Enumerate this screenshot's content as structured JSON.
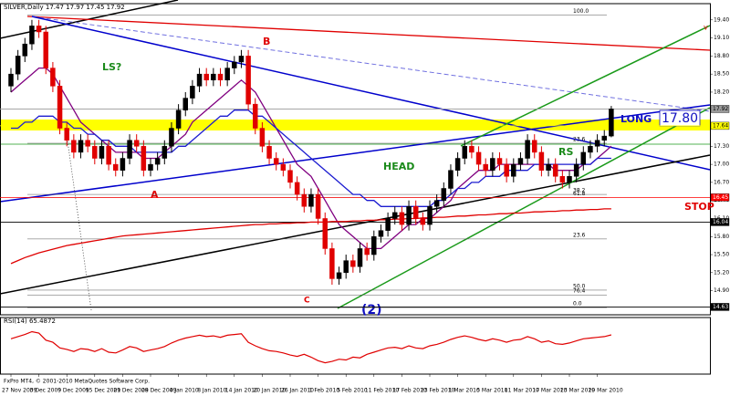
{
  "chart_data": {
    "type": "candlestick",
    "title": "SILVER,Daily  17.47 17.97 17.45 17.92",
    "footer": "FxPro MT4, © 2001-2010 MetaQuotes Software Corp.",
    "categories": [
      "27 Nov 2009",
      null,
      null,
      null,
      "3 Dec 2009",
      null,
      null,
      null,
      "9 Dec 2009",
      null,
      null,
      null,
      "15 Dec 2009",
      null,
      null,
      null,
      "21 Dec 2009",
      null,
      null,
      null,
      "28 Dec 2009",
      null,
      null,
      null,
      "4 Jan 2010",
      null,
      null,
      null,
      "8 Jan 2010",
      null,
      null,
      null,
      "14 Jan 2010",
      null,
      null,
      null,
      "20 Jan 2010",
      null,
      null,
      null,
      "26 Jan 2010",
      null,
      null,
      null,
      "1 Feb 2010",
      null,
      null,
      null,
      "5 Feb 2010",
      null,
      null,
      null,
      "11 Feb 2010",
      null,
      null,
      null,
      "17 Feb 2010",
      null,
      null,
      null,
      "23 Feb 2010",
      null,
      null,
      null,
      "1 Mar 2010",
      null,
      null,
      null,
      "5 Mar 2010",
      null,
      null,
      null,
      "11 Mar 2010",
      null,
      null,
      null,
      "17 Mar 2010",
      null,
      null,
      null,
      "23 Mar 2010",
      null,
      null,
      null,
      "29 Mar 2010",
      null,
      null
    ],
    "open": [
      18.3,
      18.5,
      18.8,
      19.0,
      19.3,
      19.2,
      18.6,
      18.3,
      17.6,
      17.4,
      17.2,
      17.4,
      17.3,
      17.1,
      17.3,
      17.0,
      16.9,
      17.1,
      17.4,
      17.3,
      16.9,
      17.0,
      17.1,
      17.3,
      17.6,
      17.9,
      18.1,
      18.3,
      18.5,
      18.4,
      18.5,
      18.4,
      18.6,
      18.7,
      18.8,
      18.0,
      17.6,
      17.3,
      17.1,
      17.0,
      16.9,
      16.7,
      16.5,
      16.3,
      16.5,
      16.1,
      15.6,
      15.1,
      15.2,
      15.4,
      15.3,
      15.6,
      15.5,
      15.8,
      15.9,
      16.1,
      16.2,
      16.0,
      16.3,
      16.1,
      16.0,
      16.3,
      16.4,
      16.6,
      16.9,
      17.1,
      17.3,
      17.2,
      17.0,
      16.9,
      17.1,
      17.0,
      16.8,
      17.0,
      17.1,
      17.4,
      17.2,
      16.9,
      17.0,
      16.8,
      16.7,
      16.8,
      17.0,
      17.2,
      17.3,
      17.4,
      17.47
    ],
    "high": [
      18.6,
      18.9,
      19.1,
      19.4,
      19.4,
      19.3,
      18.7,
      18.4,
      17.7,
      17.5,
      17.5,
      17.5,
      17.4,
      17.4,
      17.4,
      17.1,
      17.2,
      17.5,
      17.5,
      17.4,
      17.1,
      17.2,
      17.4,
      17.7,
      18.0,
      18.2,
      18.4,
      18.6,
      18.6,
      18.6,
      18.6,
      18.7,
      18.8,
      18.9,
      18.9,
      18.1,
      17.7,
      17.4,
      17.2,
      17.1,
      17.0,
      16.8,
      16.6,
      16.6,
      16.6,
      16.2,
      15.7,
      15.3,
      15.5,
      15.5,
      15.7,
      15.7,
      15.9,
      16.0,
      16.2,
      16.3,
      16.3,
      16.4,
      16.4,
      16.2,
      16.4,
      16.5,
      16.7,
      17.0,
      17.2,
      17.4,
      17.4,
      17.3,
      17.1,
      17.2,
      17.2,
      17.1,
      17.1,
      17.2,
      17.5,
      17.5,
      17.3,
      17.1,
      17.1,
      16.9,
      16.9,
      17.1,
      17.3,
      17.4,
      17.5,
      17.57,
      17.97
    ],
    "low": [
      18.2,
      18.4,
      18.7,
      18.9,
      19.1,
      18.5,
      18.2,
      17.5,
      17.3,
      17.1,
      17.1,
      17.2,
      17.0,
      17.0,
      16.9,
      16.8,
      16.8,
      17.0,
      17.2,
      16.8,
      16.8,
      16.9,
      17.0,
      17.2,
      17.5,
      17.8,
      18.0,
      18.2,
      18.3,
      18.3,
      18.3,
      18.3,
      18.5,
      18.6,
      17.9,
      17.5,
      17.2,
      17.0,
      16.9,
      16.8,
      16.6,
      16.4,
      16.2,
      16.2,
      16.0,
      15.5,
      15.0,
      15.0,
      15.1,
      15.2,
      15.2,
      15.4,
      15.4,
      15.7,
      15.8,
      16.0,
      15.9,
      15.9,
      16.0,
      15.9,
      15.9,
      16.2,
      16.3,
      16.5,
      16.8,
      17.0,
      17.1,
      16.9,
      16.8,
      16.8,
      16.9,
      16.7,
      16.7,
      16.9,
      17.0,
      17.1,
      16.8,
      16.8,
      16.7,
      16.6,
      16.6,
      16.7,
      16.9,
      17.1,
      17.2,
      17.3,
      17.45
    ],
    "close": [
      18.5,
      18.8,
      19.0,
      19.3,
      19.2,
      18.6,
      18.3,
      17.6,
      17.4,
      17.2,
      17.4,
      17.3,
      17.1,
      17.3,
      17.0,
      16.9,
      17.1,
      17.4,
      17.3,
      16.9,
      17.0,
      17.1,
      17.3,
      17.6,
      17.9,
      18.1,
      18.3,
      18.5,
      18.4,
      18.5,
      18.4,
      18.6,
      18.7,
      18.8,
      18.0,
      17.6,
      17.3,
      17.1,
      17.0,
      16.9,
      16.7,
      16.5,
      16.3,
      16.5,
      16.1,
      15.6,
      15.1,
      15.2,
      15.4,
      15.3,
      15.6,
      15.5,
      15.8,
      15.9,
      16.1,
      16.2,
      16.0,
      16.3,
      16.1,
      16.0,
      16.3,
      16.4,
      16.6,
      16.9,
      17.1,
      17.3,
      17.2,
      17.0,
      16.9,
      17.1,
      17.0,
      16.8,
      17.0,
      17.1,
      17.4,
      17.2,
      16.9,
      17.0,
      16.8,
      16.7,
      16.8,
      17.0,
      17.2,
      17.3,
      17.4,
      17.47,
      17.92
    ],
    "up_color": "#000000",
    "down_color": "#e00000",
    "ylim": [
      14.5,
      19.67
    ],
    "yticks": [
      {
        "value": 19.4,
        "label": "19.40"
      },
      {
        "value": 19.1,
        "label": "19.10"
      },
      {
        "value": 18.8,
        "label": "18.80"
      },
      {
        "value": 18.5,
        "label": "18.50"
      },
      {
        "value": 18.2,
        "label": "18.20"
      },
      {
        "value": 17.9,
        "label": "17.90"
      },
      {
        "value": 17.6,
        "label": "17.60"
      },
      {
        "value": 17.3,
        "label": "17.30"
      },
      {
        "value": 17,
        "label": "17.00"
      },
      {
        "value": 16.7,
        "label": "16.70"
      },
      {
        "value": 16.4,
        "label": "16.40"
      },
      {
        "value": 16.1,
        "label": "16.10"
      },
      {
        "value": 15.8,
        "label": "15.80"
      },
      {
        "value": 15.5,
        "label": "15.50"
      },
      {
        "value": 15.2,
        "label": "15.20"
      },
      {
        "value": 14.9,
        "label": "14.90"
      },
      {
        "value": 14.6,
        "label": "14.60"
      }
    ],
    "price_tags": [
      {
        "value": 17.92,
        "color": "#9a9a9a"
      },
      {
        "value": 17.64,
        "color": "#ffff00"
      },
      {
        "value": 16.45,
        "color": "#ff0000"
      },
      {
        "value": 16.04,
        "color": "#000000"
      },
      {
        "value": 14.63,
        "color": "#000000"
      }
    ],
    "fib_levels": [
      {
        "label": "100.0",
        "price": 19.48
      },
      {
        "label": "23.6",
        "price": 17.35
      },
      {
        "label": "38.2",
        "price": 16.5
      },
      {
        "label": "61.8",
        "price": 16.45
      },
      {
        "label": "23.6",
        "price": 15.76
      },
      {
        "label": "50.0",
        "price": 14.91
      },
      {
        "label": "76.4",
        "price": 14.83
      },
      {
        "label": "0.0",
        "price": 14.62
      }
    ],
    "series": [
      {
        "color": "#800080",
        "values": [
          18.2,
          18.3,
          18.4,
          18.5,
          18.6,
          18.6,
          18.5,
          18.3,
          18.1,
          17.9,
          17.7,
          17.6,
          17.5,
          17.4,
          17.3,
          17.2,
          17.2,
          17.2,
          17.2,
          17.1,
          17.1,
          17.1,
          17.2,
          17.3,
          17.4,
          17.5,
          17.7,
          17.8,
          17.9,
          18.0,
          18.1,
          18.2,
          18.3,
          18.4,
          18.3,
          18.2,
          18.0,
          17.8,
          17.6,
          17.4,
          17.2,
          17.0,
          16.9,
          16.8,
          16.6,
          16.4,
          16.2,
          16.0,
          15.9,
          15.8,
          15.7,
          15.6,
          15.6,
          15.6,
          15.7,
          15.8,
          15.9,
          16.0,
          16.0,
          16.1,
          16.1,
          16.2,
          16.3,
          16.4,
          16.6,
          16.7,
          16.8,
          16.9,
          16.9,
          16.9,
          17.0,
          17.0,
          17.0,
          17.0,
          17.0,
          17.0,
          17.0,
          17.0,
          16.9,
          16.9,
          16.9,
          16.9,
          17.0,
          17.0,
          17.1,
          17.2,
          17.3
        ]
      },
      {
        "color": "#1c1cd0",
        "values": [
          17.6,
          17.6,
          17.7,
          17.7,
          17.8,
          17.8,
          17.8,
          17.7,
          17.7,
          17.6,
          17.6,
          17.5,
          17.5,
          17.4,
          17.4,
          17.3,
          17.3,
          17.3,
          17.2,
          17.2,
          17.2,
          17.2,
          17.2,
          17.2,
          17.3,
          17.3,
          17.4,
          17.5,
          17.6,
          17.7,
          17.8,
          17.8,
          17.9,
          17.9,
          17.9,
          17.8,
          17.8,
          17.7,
          17.6,
          17.5,
          17.4,
          17.3,
          17.2,
          17.1,
          17.0,
          16.9,
          16.8,
          16.7,
          16.6,
          16.5,
          16.5,
          16.4,
          16.4,
          16.3,
          16.3,
          16.3,
          16.3,
          16.3,
          16.3,
          16.3,
          16.3,
          16.4,
          16.4,
          16.5,
          16.6,
          16.6,
          16.7,
          16.7,
          16.8,
          16.8,
          16.8,
          16.9,
          16.9,
          16.9,
          16.9,
          17.0,
          17.0,
          17.0,
          17.0,
          17.0,
          17.0,
          17.0,
          17.0,
          17.0,
          17.1,
          17.1,
          17.1
        ]
      },
      {
        "color": "#e00000",
        "values": [
          15.35,
          15.4,
          15.45,
          15.49,
          15.53,
          15.56,
          15.59,
          15.62,
          15.65,
          15.67,
          15.69,
          15.71,
          15.73,
          15.75,
          15.77,
          15.79,
          15.81,
          15.82,
          15.83,
          15.84,
          15.85,
          15.86,
          15.87,
          15.88,
          15.89,
          15.9,
          15.91,
          15.92,
          15.93,
          15.94,
          15.95,
          15.96,
          15.97,
          15.98,
          15.99,
          16.0,
          16.0,
          16.01,
          16.01,
          16.02,
          16.02,
          16.03,
          16.03,
          16.04,
          16.04,
          16.04,
          16.05,
          16.05,
          16.05,
          16.06,
          16.06,
          16.07,
          16.07,
          16.08,
          16.08,
          16.09,
          16.09,
          16.1,
          16.1,
          16.11,
          16.11,
          16.12,
          16.12,
          16.13,
          16.14,
          16.14,
          16.15,
          16.16,
          16.16,
          16.17,
          16.18,
          16.18,
          16.19,
          16.19,
          16.2,
          16.21,
          16.21,
          16.22,
          16.22,
          16.23,
          16.23,
          16.24,
          16.24,
          16.25,
          16.25,
          16.26,
          16.26
        ]
      }
    ],
    "indicator": {
      "title": "RSI(14) 65.4872",
      "color": "#e00000",
      "ylim": [
        10,
        90
      ],
      "values": [
        60,
        63,
        66,
        70,
        68,
        58,
        55,
        47,
        45,
        42,
        46,
        45,
        42,
        46,
        41,
        40,
        44,
        49,
        47,
        42,
        44,
        46,
        49,
        54,
        58,
        61,
        63,
        65,
        63,
        64,
        62,
        65,
        66,
        67,
        55,
        50,
        46,
        43,
        42,
        40,
        37,
        35,
        38,
        34,
        29,
        26,
        28,
        31,
        30,
        34,
        33,
        38,
        41,
        44,
        47,
        48,
        46,
        50,
        47,
        46,
        50,
        52,
        55,
        59,
        62,
        64,
        62,
        59,
        57,
        60,
        58,
        55,
        58,
        59,
        63,
        60,
        55,
        57,
        53,
        52,
        54,
        57,
        60,
        61,
        62,
        63,
        65.49
      ]
    },
    "annotations": [
      "LS?",
      "B",
      "A",
      "HEAD",
      "RS",
      "C",
      "(2)",
      "LONG",
      "17.80",
      "STOP",
      "v"
    ]
  }
}
